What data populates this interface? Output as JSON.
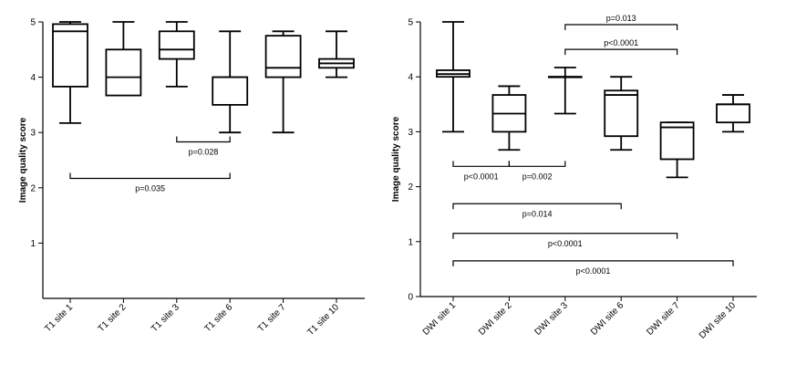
{
  "chart_data": [
    {
      "type": "box",
      "title": "",
      "xlabel": "",
      "ylabel": "Image quality score",
      "ylim": [
        0,
        5
      ],
      "yticks": [
        1,
        2,
        3,
        4,
        5
      ],
      "show_zero_tick_label": false,
      "categories": [
        "T1 site 1",
        "T1 site 2",
        "T1 site 3",
        "T1 site 6",
        "T1 site 7",
        "T1 site 10"
      ],
      "boxes": [
        {
          "min": 3.17,
          "q1": 3.83,
          "median": 4.83,
          "q3": 4.96,
          "max": 5.0
        },
        {
          "min": 3.67,
          "q1": 3.67,
          "median": 4.0,
          "q3": 4.5,
          "max": 5.0
        },
        {
          "min": 3.83,
          "q1": 4.33,
          "median": 4.5,
          "q3": 4.83,
          "max": 5.0
        },
        {
          "min": 3.0,
          "q1": 3.5,
          "median": 4.0,
          "q3": 4.0,
          "max": 4.83
        },
        {
          "min": 3.0,
          "q1": 4.0,
          "median": 4.17,
          "q3": 4.75,
          "max": 4.83
        },
        {
          "min": 4.0,
          "q1": 4.17,
          "median": 4.25,
          "q3": 4.33,
          "max": 4.83
        }
      ],
      "comparisons": [
        {
          "from": 3,
          "to": 4,
          "y": 2.83,
          "label": "p=0.028",
          "tick_dir": "up",
          "label_pos": "below"
        },
        {
          "from": 1,
          "to": 4,
          "y": 2.17,
          "label": "p=0.035",
          "tick_dir": "up",
          "label_pos": "below"
        }
      ]
    },
    {
      "type": "box",
      "title": "",
      "xlabel": "",
      "ylabel": "Image quality score",
      "ylim": [
        0,
        5
      ],
      "yticks": [
        0,
        1,
        2,
        3,
        4,
        5
      ],
      "show_zero_tick_label": true,
      "categories": [
        "DWI site 1",
        "DWI site 2",
        "DWI site 3",
        "DWI site 6",
        "DWI site 7",
        "DWI site 10"
      ],
      "boxes": [
        {
          "min": 3.0,
          "q1": 4.0,
          "median": 4.05,
          "q3": 4.12,
          "max": 5.0
        },
        {
          "min": 2.67,
          "q1": 3.0,
          "median": 3.33,
          "q3": 3.67,
          "max": 3.83
        },
        {
          "min": 3.33,
          "q1": 4.0,
          "median": 4.0,
          "q3": 4.0,
          "max": 4.17
        },
        {
          "min": 2.67,
          "q1": 2.92,
          "median": 3.67,
          "q3": 3.75,
          "max": 4.0
        },
        {
          "min": 2.17,
          "q1": 2.5,
          "median": 3.08,
          "q3": 3.17,
          "max": 3.17
        },
        {
          "min": 3.0,
          "q1": 3.17,
          "median": 3.5,
          "q3": 3.5,
          "max": 3.67
        }
      ],
      "comparisons": [
        {
          "from": 3,
          "to": 5,
          "y": 4.95,
          "label": "p=0.013",
          "tick_dir": "down",
          "label_pos": "above"
        },
        {
          "from": 3,
          "to": 5,
          "y": 4.5,
          "label": "p<0.0001",
          "tick_dir": "down",
          "label_pos": "above"
        },
        {
          "from": 1,
          "to": 2,
          "y": 2.37,
          "label": "p<0.0001",
          "tick_dir": "up",
          "label_pos": "below"
        },
        {
          "from": 2,
          "to": 3,
          "y": 2.37,
          "label": "p=0.002",
          "tick_dir": "up",
          "label_pos": "below"
        },
        {
          "from": 1,
          "to": 4,
          "y": 1.69,
          "label": "p=0.014",
          "tick_dir": "down",
          "label_pos": "below"
        },
        {
          "from": 1,
          "to": 5,
          "y": 1.15,
          "label": "p<0.0001",
          "tick_dir": "down",
          "label_pos": "below"
        },
        {
          "from": 1,
          "to": 6,
          "y": 0.65,
          "label": "p<0.0001",
          "tick_dir": "down",
          "label_pos": "below"
        }
      ]
    }
  ]
}
